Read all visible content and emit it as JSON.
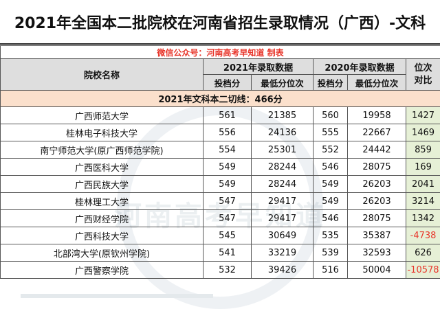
{
  "title": "2021年全国本二批院校在河南省招生录取情况（广西）-文科",
  "source_note": "微信公众号：河南高考早知道 制表",
  "headers": {
    "school": "院校名称",
    "y2021": "2021年录取数据",
    "y2020": "2020年录取数据",
    "rank_compare": "位次\n对比",
    "score": "投档分",
    "min_rank": "最低分位次"
  },
  "cutoff_line": "2021年文科本二切线：466分",
  "rows": [
    {
      "school": "广西师范大学",
      "s21": "561",
      "r21": "21385",
      "s20": "560",
      "r20": "19958",
      "diff": "1427"
    },
    {
      "school": "桂林电子科技大学",
      "s21": "556",
      "r21": "24136",
      "s20": "555",
      "r20": "22667",
      "diff": "1469"
    },
    {
      "school": "南宁师范大学(原广西师范学院)",
      "s21": "554",
      "r21": "25301",
      "s20": "552",
      "r20": "24442",
      "diff": "859"
    },
    {
      "school": "广西医科大学",
      "s21": "549",
      "r21": "28244",
      "s20": "546",
      "r20": "28075",
      "diff": "169"
    },
    {
      "school": "广西民族大学",
      "s21": "549",
      "r21": "28244",
      "s20": "549",
      "r20": "26203",
      "diff": "2041"
    },
    {
      "school": "桂林理工大学",
      "s21": "547",
      "r21": "29417",
      "s20": "549",
      "r20": "26203",
      "diff": "3214"
    },
    {
      "school": "广西财经学院",
      "s21": "547",
      "r21": "29417",
      "s20": "546",
      "r20": "28075",
      "diff": "1342"
    },
    {
      "school": "广西科技大学",
      "s21": "545",
      "r21": "30649",
      "s20": "535",
      "r20": "35387",
      "diff": "-4738"
    },
    {
      "school": "北部湾大学(原钦州学院)",
      "s21": "541",
      "r21": "33219",
      "s20": "539",
      "r20": "32593",
      "diff": "626"
    },
    {
      "school": "广西警察学院",
      "s21": "532",
      "r21": "39426",
      "s20": "516",
      "r20": "50004",
      "diff": "-10578"
    }
  ],
  "colors": {
    "accent_red": "#e8352a",
    "header_gray": "#dedede",
    "cutoff_bg": "#fbe0cc",
    "diff_bg": "#e6f0d6"
  }
}
